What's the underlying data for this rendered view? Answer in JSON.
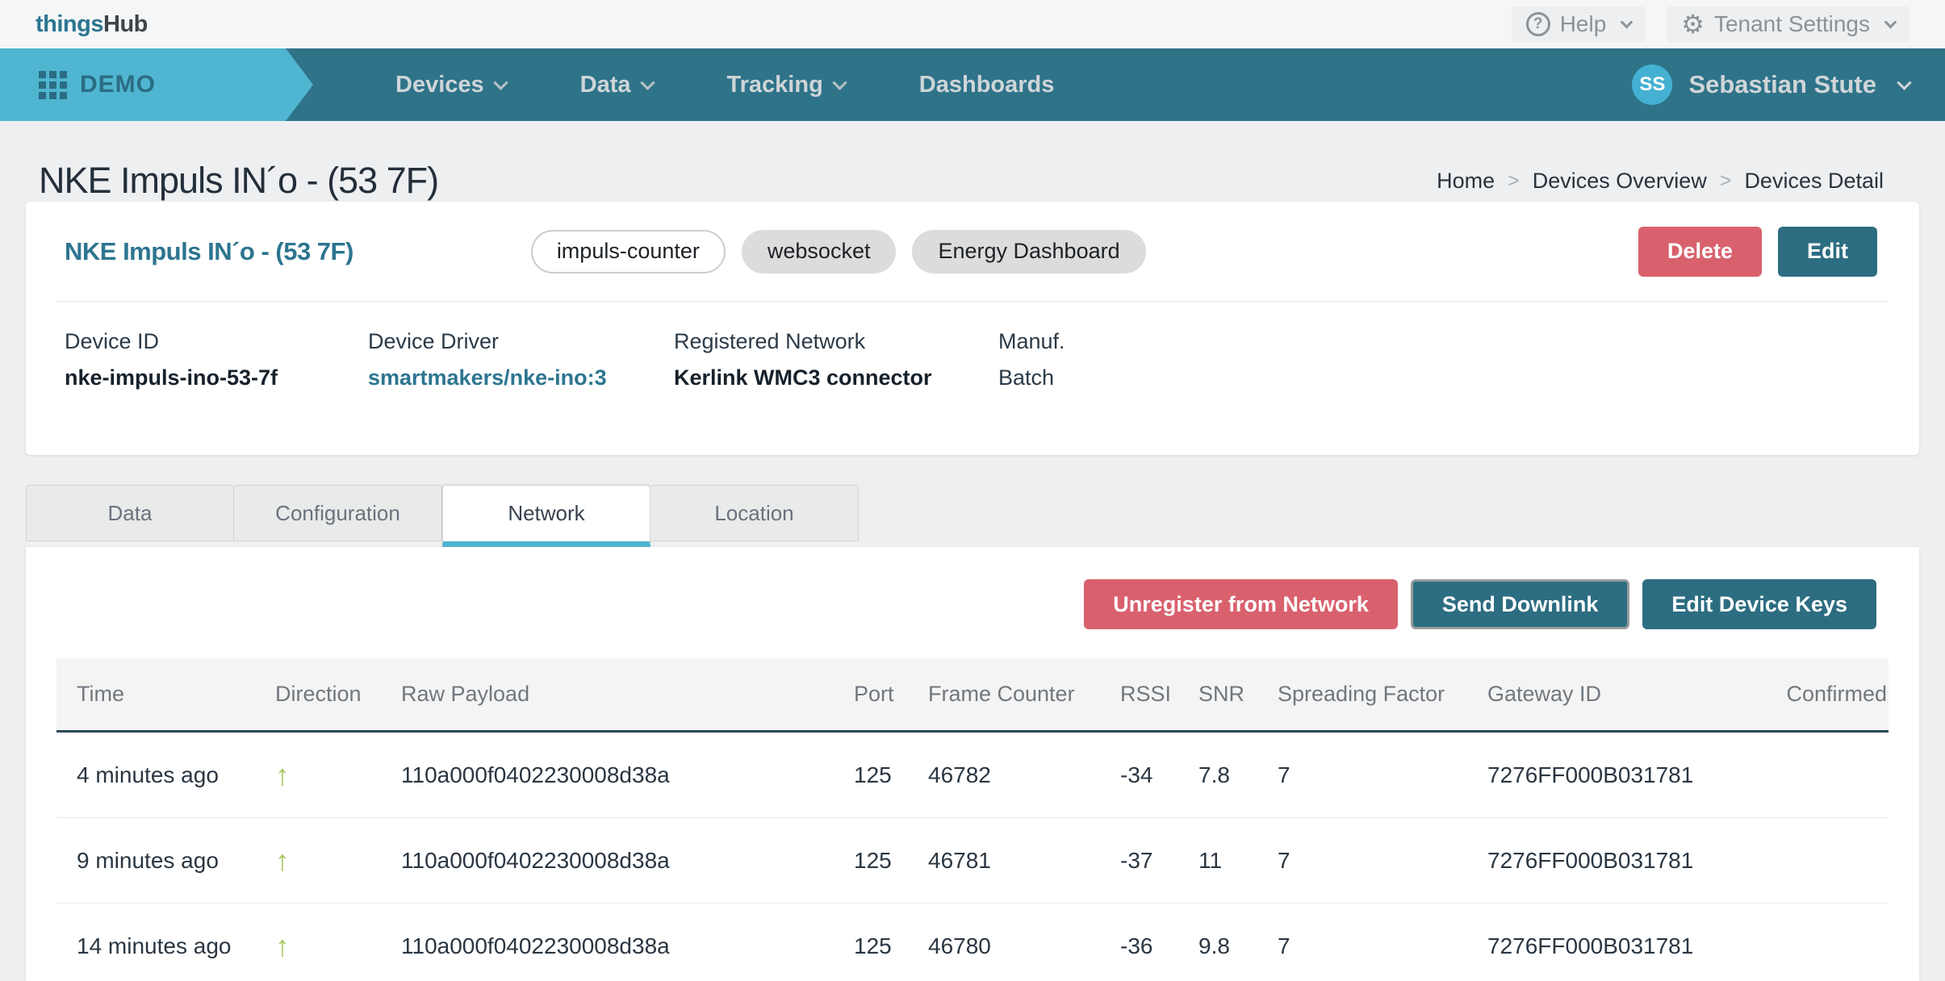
{
  "topbar": {
    "brand_part1": "things",
    "brand_part2": "Hub",
    "help_label": "Help",
    "help_icon_glyph": "?",
    "tenant_settings_label": "Tenant Settings"
  },
  "navbar": {
    "tenant_label": "DEMO",
    "items": [
      {
        "label": "Devices",
        "has_dropdown": true
      },
      {
        "label": "Data",
        "has_dropdown": true
      },
      {
        "label": "Tracking",
        "has_dropdown": true
      },
      {
        "label": "Dashboards",
        "has_dropdown": false
      }
    ],
    "user": {
      "initials": "SS",
      "name": "Sebastian Stute"
    }
  },
  "page": {
    "title": "NKE Impuls IN´o - (53 7F)",
    "breadcrumb": [
      {
        "label": "Home"
      },
      {
        "label": "Devices Overview"
      },
      {
        "label": "Devices Detail"
      }
    ]
  },
  "device_card": {
    "name": "NKE Impuls IN´o - (53 7F)",
    "tags": [
      {
        "label": "impuls-counter",
        "style": "outline"
      },
      {
        "label": "websocket",
        "style": "filled"
      },
      {
        "label": "Energy Dashboard",
        "style": "filled"
      }
    ],
    "delete_label": "Delete",
    "edit_label": "Edit",
    "fields": [
      {
        "label": "Device ID",
        "value": "nke-impuls-ino-53-7f",
        "type": "bold"
      },
      {
        "label": "Device Driver",
        "value": "smartmakers/nke-ino:3",
        "type": "link"
      },
      {
        "label": "Registered Network",
        "value": "Kerlink WMC3 connector",
        "type": "bold"
      },
      {
        "label": "Manuf.",
        "value": "Batch",
        "type": "plain"
      }
    ]
  },
  "tabs": [
    {
      "label": "Data",
      "active": false
    },
    {
      "label": "Configuration",
      "active": false
    },
    {
      "label": "Network",
      "active": true
    },
    {
      "label": "Location",
      "active": false
    }
  ],
  "network_panel": {
    "actions": [
      {
        "label": "Unregister from Network",
        "variant": "danger"
      },
      {
        "label": "Send Downlink",
        "variant": "teal-outlined"
      },
      {
        "label": "Edit Device Keys",
        "variant": "teal"
      }
    ],
    "table": {
      "columns": [
        "Time",
        "Direction",
        "Raw Payload",
        "Port",
        "Frame Counter",
        "RSSI",
        "SNR",
        "Spreading Factor",
        "Gateway ID",
        "Confirmed"
      ],
      "rows": [
        {
          "time": "4 minutes ago",
          "direction": "up",
          "raw_payload": "110a000f0402230008d38a",
          "port": "125",
          "frame_counter": "46782",
          "rssi": "-34",
          "snr": "7.8",
          "spreading_factor": "7",
          "gateway_id": "7276FF000B031781",
          "confirmed": ""
        },
        {
          "time": "9 minutes ago",
          "direction": "up",
          "raw_payload": "110a000f0402230008d38a",
          "port": "125",
          "frame_counter": "46781",
          "rssi": "-37",
          "snr": "11",
          "spreading_factor": "7",
          "gateway_id": "7276FF000B031781",
          "confirmed": ""
        },
        {
          "time": "14 minutes ago",
          "direction": "up",
          "raw_payload": "110a000f0402230008d38a",
          "port": "125",
          "frame_counter": "46780",
          "rssi": "-36",
          "snr": "9.8",
          "spreading_factor": "7",
          "gateway_id": "7276FF000B031781",
          "confirmed": ""
        }
      ]
    }
  },
  "colors": {
    "nav_teal": "#2f7389",
    "tenant_light_blue": "#4fb5d0",
    "accent_teal_button": "#2d6d82",
    "danger_red": "#d9616e",
    "link_teal": "#2d7590",
    "uplink_arrow_green": "#a6c65c",
    "page_background": "#edeff1"
  }
}
